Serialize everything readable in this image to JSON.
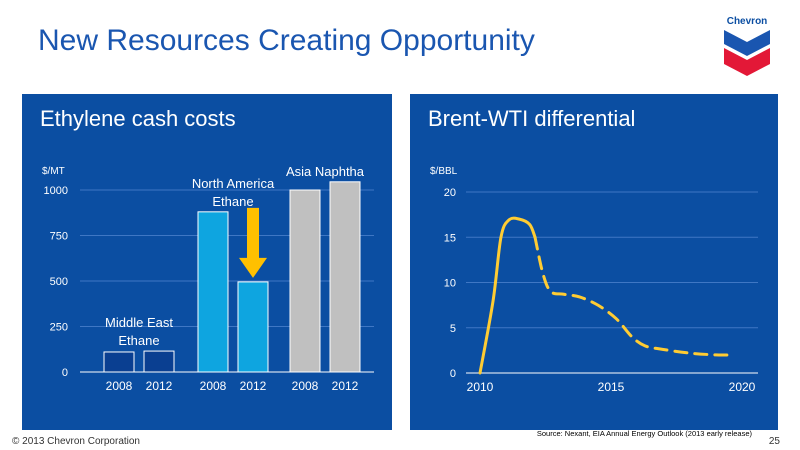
{
  "slide": {
    "title": "New Resources Creating Opportunity",
    "logo_text": "Chevron",
    "footer": "© 2013 Chevron Corporation",
    "source": "Source: Nexant, EIA Annual Energy Outlook (2013 early release)",
    "page_number": "25"
  },
  "colors": {
    "panel_bg": "#0b4ea2",
    "title_blue": "#1a56b0",
    "middle_east": "#0a3f91",
    "north_america": "#0ea5e0",
    "asia": "#c0c0c0",
    "arrow": "#ffc000",
    "line": "#ffcc33"
  },
  "chart_data": [
    {
      "type": "bar",
      "title": "Ethylene cash costs",
      "ylabel": "$/MT",
      "ylim": [
        0,
        1000
      ],
      "yticks": [
        "0",
        "250",
        "500",
        "750",
        "1000"
      ],
      "grid": true,
      "groups": [
        {
          "label_lines": [
            "Middle East",
            "Ethane"
          ],
          "color": "#0a3f91",
          "categories": [
            "2008",
            "2012"
          ],
          "values": [
            110,
            115
          ]
        },
        {
          "label_lines": [
            "North America",
            "Ethane"
          ],
          "color": "#0ea5e0",
          "categories": [
            "2008",
            "2012"
          ],
          "values": [
            880,
            495
          ]
        },
        {
          "label_lines": [
            "Asia Naphtha"
          ],
          "color": "#c0c0c0",
          "categories": [
            "2008",
            "2012"
          ],
          "values": [
            1000,
            1045
          ]
        }
      ]
    },
    {
      "type": "line",
      "title": "Brent-WTI differential",
      "ylabel": "$/BBL",
      "ylim": [
        0,
        20
      ],
      "xlim": [
        2010,
        2020
      ],
      "yticks": [
        "0",
        "5",
        "10",
        "15",
        "20"
      ],
      "xticks": [
        "2010",
        "2015",
        "2020"
      ],
      "grid": true,
      "series": [
        {
          "solid": [
            [
              2010,
              0
            ],
            [
              2010.5,
              8
            ],
            [
              2010.8,
              15
            ],
            [
              2011.1,
              16.9
            ],
            [
              2011.5,
              17
            ],
            [
              2011.9,
              16.4
            ],
            [
              2012.1,
              15
            ]
          ],
          "dashed": [
            [
              2012.1,
              15
            ],
            [
              2012.4,
              11
            ],
            [
              2012.7,
              9
            ],
            [
              2013.2,
              8.7
            ],
            [
              2013.8,
              8.4
            ],
            [
              2014.5,
              7.5
            ],
            [
              2015.2,
              6
            ],
            [
              2015.8,
              4
            ],
            [
              2016.3,
              3
            ],
            [
              2017,
              2.6
            ],
            [
              2018,
              2.2
            ],
            [
              2019,
              2.0
            ],
            [
              2019.6,
              2.0
            ]
          ]
        }
      ]
    }
  ]
}
